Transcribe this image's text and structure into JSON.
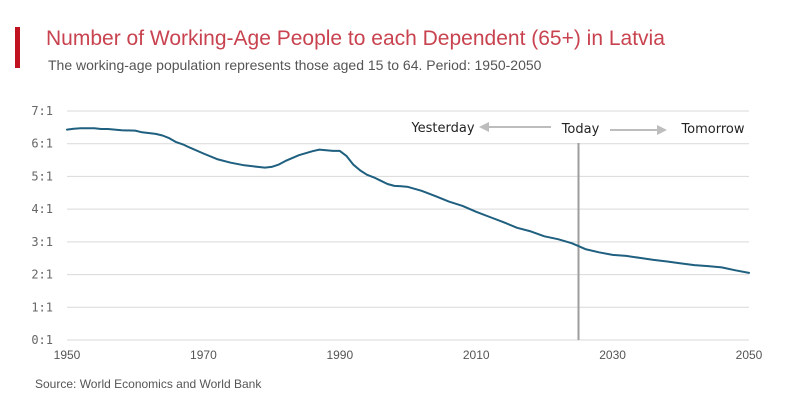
{
  "header": {
    "title": "Number of Working-Age People to each Dependent (65+) in Latvia",
    "subtitle": "The working-age population represents those aged 15 to 64. Period: 1950-2050"
  },
  "footer": {
    "source": "Source: World Economics and World Bank"
  },
  "colors": {
    "accent": "#c1121f",
    "title": "#c8434f",
    "line": "#1f5f7f",
    "grid": "#d9d9d9",
    "today_line": "#9e9e9e",
    "arrow": "#bdbdbd"
  },
  "chart_data": {
    "type": "line",
    "title": "Number of Working-Age People to each Dependent (65+) in Latvia",
    "xlabel": "",
    "ylabel": "",
    "xlim": [
      1950,
      2050
    ],
    "ylim": [
      0,
      7
    ],
    "grid": true,
    "y_ticks": [
      {
        "value": 0,
        "label": "0:1"
      },
      {
        "value": 1,
        "label": "1:1"
      },
      {
        "value": 2,
        "label": "2:1"
      },
      {
        "value": 3,
        "label": "3:1"
      },
      {
        "value": 4,
        "label": "4:1"
      },
      {
        "value": 5,
        "label": "5:1"
      },
      {
        "value": 6,
        "label": "6:1"
      },
      {
        "value": 7,
        "label": "7:1"
      }
    ],
    "x_ticks": [
      {
        "value": 1950,
        "label": "1950"
      },
      {
        "value": 1970,
        "label": "1970"
      },
      {
        "value": 1990,
        "label": "1990"
      },
      {
        "value": 2010,
        "label": "2010"
      },
      {
        "value": 2030,
        "label": "2030"
      },
      {
        "value": 2050,
        "label": "2050"
      }
    ],
    "annotations": {
      "today_year": 2025,
      "today_label": "Today",
      "past_label": "Yesterday",
      "future_label": "Tomorrow"
    },
    "series": [
      {
        "x": [
          1950,
          1951,
          1952,
          1954,
          1955,
          1956,
          1958,
          1960,
          1961,
          1963,
          1964,
          1965,
          1966,
          1967,
          1968,
          1970,
          1972,
          1974,
          1976,
          1978,
          1979,
          1980,
          1981,
          1982,
          1984,
          1986,
          1987,
          1988,
          1989,
          1990,
          1991,
          1992,
          1993,
          1994,
          1995,
          1996,
          1997,
          1998,
          1999,
          2000,
          2002,
          2004,
          2006,
          2008,
          2010,
          2012,
          2014,
          2016,
          2018,
          2020,
          2022,
          2024,
          2025,
          2026,
          2028,
          2030,
          2032,
          2034,
          2036,
          2038,
          2040,
          2042,
          2044,
          2046,
          2048,
          2050
        ],
        "y": [
          6.43,
          6.46,
          6.47,
          6.47,
          6.45,
          6.45,
          6.41,
          6.4,
          6.35,
          6.3,
          6.25,
          6.17,
          6.05,
          5.98,
          5.88,
          5.7,
          5.53,
          5.42,
          5.34,
          5.29,
          5.27,
          5.29,
          5.36,
          5.47,
          5.65,
          5.77,
          5.82,
          5.8,
          5.78,
          5.78,
          5.62,
          5.36,
          5.18,
          5.05,
          4.97,
          4.87,
          4.77,
          4.71,
          4.7,
          4.68,
          4.56,
          4.4,
          4.23,
          4.1,
          3.92,
          3.76,
          3.6,
          3.43,
          3.32,
          3.17,
          3.08,
          2.96,
          2.87,
          2.78,
          2.68,
          2.6,
          2.57,
          2.51,
          2.45,
          2.4,
          2.34,
          2.29,
          2.26,
          2.22,
          2.13,
          2.05
        ]
      }
    ]
  }
}
